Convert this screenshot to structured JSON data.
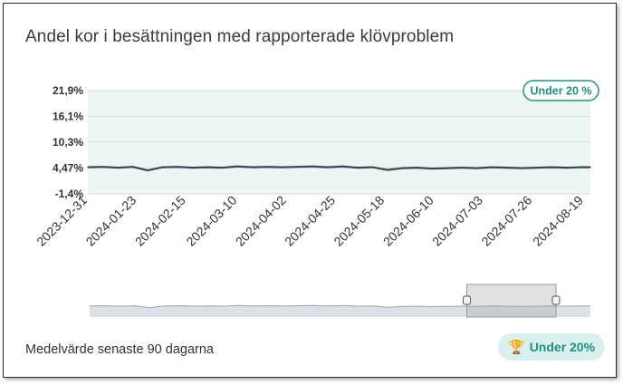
{
  "title": "Andel kor i besättningen med rapporterade klövproblem",
  "footer": {
    "label": "Medelvärde senaste 90 dagarna",
    "badge": "Under 20%",
    "badge_icon": "trophy-icon"
  },
  "colors": {
    "line": "#3b4556",
    "plot_bg": "#eef6f4",
    "grid": "#d3dad8",
    "threshold_text": "#1f9283",
    "threshold_border": "#1f9283",
    "badge_bg": "#d9f1ee",
    "trophy": "#d68a12",
    "navigator_fill": "#dde1e7",
    "navigator_line": "#9aa3b0"
  },
  "chart_data": {
    "type": "line",
    "xaxis_type": "date",
    "xlim": [
      "2023-12-31",
      "2024-08-22"
    ],
    "ylim": [
      -1.4,
      21.9
    ],
    "y_ticks": [
      21.9,
      16.1,
      10.3,
      4.47,
      -1.4
    ],
    "y_tick_labels": [
      "21,9%",
      "16,1%",
      "10,3%",
      "4,47%",
      "-1,4%"
    ],
    "x_ticks": [
      "2023-12-31",
      "2024-01-23",
      "2024-02-15",
      "2024-03-10",
      "2024-04-02",
      "2024-04-25",
      "2024-05-18",
      "2024-06-10",
      "2024-07-03",
      "2024-07-26",
      "2024-08-19"
    ],
    "grid": true,
    "threshold_label": "Under 20 %",
    "series": [
      {
        "x": [
          "2023-12-31",
          "2024-01-07",
          "2024-01-14",
          "2024-01-21",
          "2024-01-28",
          "2024-02-04",
          "2024-02-11",
          "2024-02-18",
          "2024-02-25",
          "2024-03-03",
          "2024-03-10",
          "2024-03-17",
          "2024-03-24",
          "2024-03-31",
          "2024-04-07",
          "2024-04-14",
          "2024-04-21",
          "2024-04-28",
          "2024-05-05",
          "2024-05-12",
          "2024-05-19",
          "2024-05-26",
          "2024-06-02",
          "2024-06-09",
          "2024-06-16",
          "2024-06-23",
          "2024-06-30",
          "2024-07-07",
          "2024-07-14",
          "2024-07-21",
          "2024-07-28",
          "2024-08-04",
          "2024-08-11",
          "2024-08-18",
          "2024-08-22"
        ],
        "values": [
          4.6,
          4.7,
          4.5,
          4.7,
          3.9,
          4.6,
          4.7,
          4.5,
          4.6,
          4.5,
          4.8,
          4.6,
          4.7,
          4.6,
          4.7,
          4.8,
          4.6,
          4.8,
          4.5,
          4.6,
          4.0,
          4.4,
          4.5,
          4.3,
          4.4,
          4.5,
          4.4,
          4.6,
          4.5,
          4.4,
          4.5,
          4.6,
          4.5,
          4.6,
          4.6
        ]
      }
    ],
    "navigator": {
      "range": [
        "2024-06-25",
        "2024-08-22"
      ]
    }
  }
}
